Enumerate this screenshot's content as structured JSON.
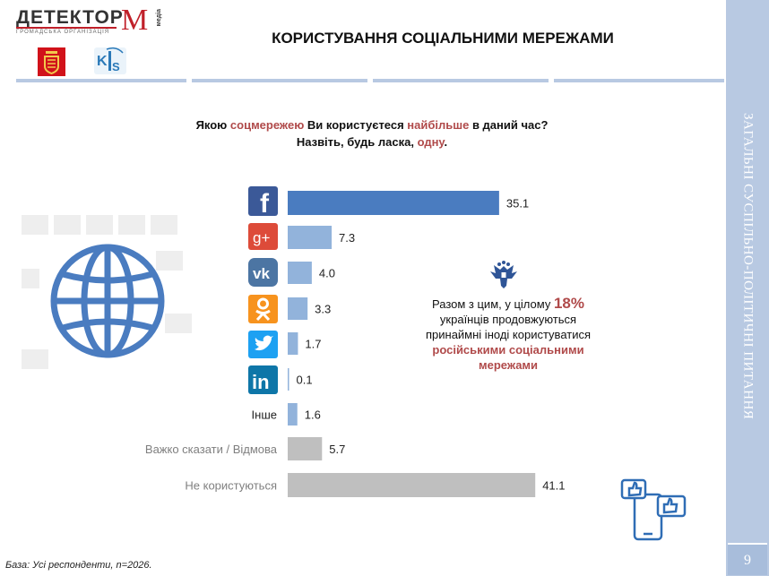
{
  "header": {
    "logo_word": "ДЕТЕКТОР",
    "logo_letter": "М",
    "logo_media": "медіа",
    "logo_subtitle": "ГРОМАДСЬКА ОРГАНІЗАЦІЯ",
    "title": "КОРИСТУВАННЯ СОЦІАЛЬНИМИ МЕРЕЖАМИ"
  },
  "side": {
    "band_text": "ЗАГАЛЬНІ СУСПІЛЬНО-ПОЛІТИЧНІ ПИТАННЯ",
    "page_number": "9"
  },
  "question": {
    "p1": "Якою ",
    "p2": "соцмережею",
    "p3": " Ви користуєтеся ",
    "p4": "найбільше",
    "p5": " в даний час?",
    "p6": "Назвіть, будь ласка, ",
    "p7": "одну",
    "p8": "."
  },
  "note": {
    "l1a": "Разом з цим, у цілому ",
    "l1b": "18%",
    "l2": "українців продовжуються",
    "l3": "принаймні іноді користуватися",
    "l4": "російськими соціальними",
    "l5": "мережами"
  },
  "base_note": "База: Усі респонденти, n=2026.",
  "colors": {
    "facebook_bar": "#4a7cc0",
    "other_bars": "#92b3db",
    "gray_bars": "#bfbfbf",
    "accent_red": "#b04a4a",
    "side_band": "#b8c9e2"
  },
  "chart_data": {
    "type": "bar",
    "orientation": "horizontal",
    "categories": [
      "facebook-icon",
      "google-plus-icon",
      "vk-icon",
      "odnoklassniki-icon",
      "twitter-icon",
      "linkedin-icon",
      "Інше",
      "Важко сказати / Відмова",
      "Не користуються"
    ],
    "value_labels": [
      "35.1",
      "7.3",
      "4.0",
      "3.3",
      "1.7",
      "0.1",
      "1.6",
      "5.7",
      "41.1"
    ],
    "values": [
      35.1,
      7.3,
      4.0,
      3.3,
      1.7,
      0.1,
      1.6,
      5.7,
      41.1
    ],
    "label_categories": [
      "",
      "",
      "",
      "",
      "",
      "",
      "Інше",
      "Важко сказати / Відмова",
      "Не користуються"
    ],
    "xlim": [
      0,
      45
    ],
    "grid": false,
    "legend": "none"
  }
}
